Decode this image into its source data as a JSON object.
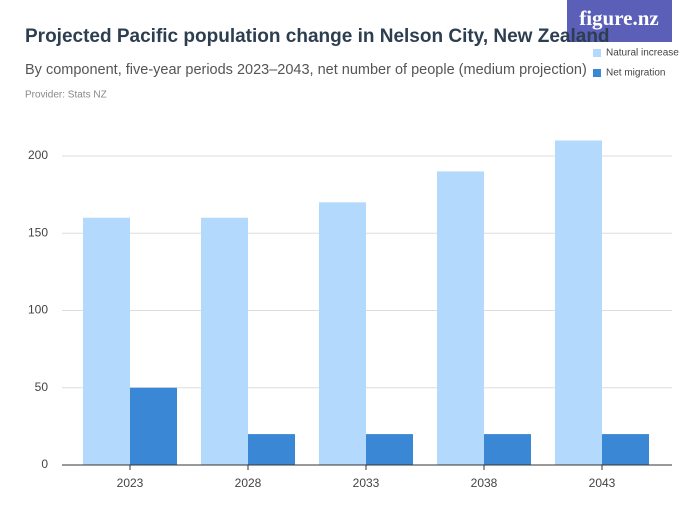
{
  "brand": "figure.nz",
  "chart_data": {
    "type": "bar",
    "title": "Projected Pacific population change in Nelson City, New Zealand",
    "subtitle": "By component, five-year periods 2023–2043, net number of people (medium projection)",
    "source": "Provider: Stats NZ",
    "categories": [
      "2023",
      "2028",
      "2033",
      "2038",
      "2043"
    ],
    "series": [
      {
        "name": "Natural increase",
        "color": "#b3dafd",
        "values": [
          160,
          160,
          170,
          190,
          210
        ]
      },
      {
        "name": "Net migration",
        "color": "#3a87d6",
        "values": [
          50,
          20,
          20,
          20,
          20
        ]
      }
    ],
    "ylim": [
      0,
      210
    ],
    "yticks": [
      0,
      50,
      100,
      150,
      200
    ],
    "grid": true,
    "legend": "top-right"
  }
}
